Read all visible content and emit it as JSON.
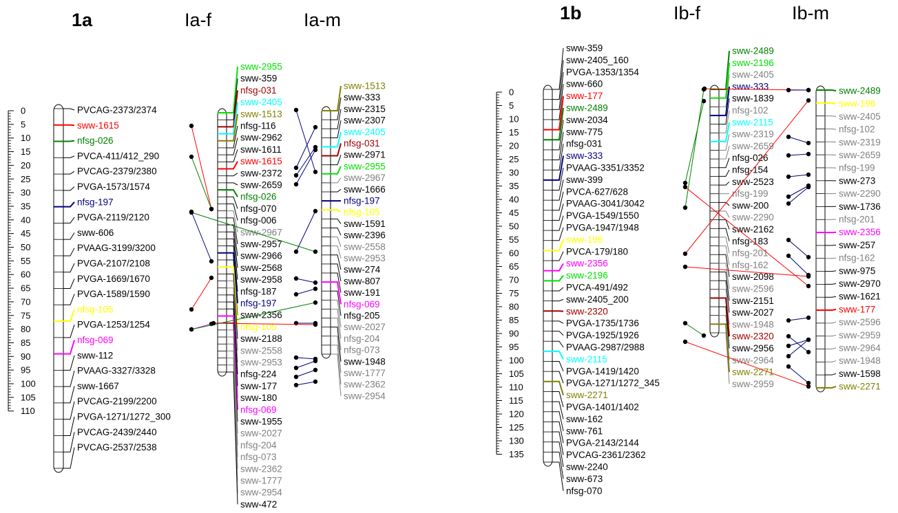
{
  "panels": [
    {
      "label": "1a",
      "columns": [
        {
          "title": "",
          "markers": [
            {
              "name": "PVCAG-2373/2374",
              "color": "#000000"
            },
            {
              "name": "sww-1615",
              "color": "#ff0000"
            },
            {
              "name": "nfsg-026",
              "color": "#008000"
            },
            {
              "name": "PVCA-411/412_290",
              "color": "#000000"
            },
            {
              "name": "PVCAG-2379/2380",
              "color": "#000000"
            },
            {
              "name": "PVGA-1573/1574",
              "color": "#000000"
            },
            {
              "name": "nfsg-197",
              "color": "#000080"
            },
            {
              "name": "PVGA-2119/2120",
              "color": "#000000"
            },
            {
              "name": "sww-606",
              "color": "#000000"
            },
            {
              "name": "PVAAG-3199/3200",
              "color": "#000000"
            },
            {
              "name": "PVGA-2107/2108",
              "color": "#000000"
            },
            {
              "name": "PVGA-1669/1670",
              "color": "#000000"
            },
            {
              "name": "PVGA-1589/1590",
              "color": "#000000"
            },
            {
              "name": "nfsg-105",
              "color": "#ffff00"
            },
            {
              "name": "PVGA-1253/1254",
              "color": "#000000"
            },
            {
              "name": "nfsg-069",
              "color": "#ff00ff"
            },
            {
              "name": "sww-112",
              "color": "#000000"
            },
            {
              "name": "PVAAG-3327/3328",
              "color": "#000000"
            },
            {
              "name": "sww-1667",
              "color": "#000000"
            },
            {
              "name": "PVCAG-2199/2200",
              "color": "#000000"
            },
            {
              "name": "PVGA-1271/1272_300",
              "color": "#000000"
            },
            {
              "name": "PVCAG-2439/2440",
              "color": "#000000"
            },
            {
              "name": "PVCAG-2537/2538",
              "color": "#000000"
            }
          ]
        },
        {
          "title": "Ia-f",
          "markers": [
            {
              "name": "sww-2955",
              "color": "#00e000"
            },
            {
              "name": "sww-359",
              "color": "#000000"
            },
            {
              "name": "nfsg-031",
              "color": "#a00000"
            },
            {
              "name": "sww-2405",
              "color": "#00ffff"
            },
            {
              "name": "sww-1513",
              "color": "#808000"
            },
            {
              "name": "nfsg-116",
              "color": "#000000"
            },
            {
              "name": "sww-2962",
              "color": "#000000"
            },
            {
              "name": "sww-1611",
              "color": "#000000"
            },
            {
              "name": "sww-1615",
              "color": "#ff0000"
            },
            {
              "name": "sww-2372",
              "color": "#000000"
            },
            {
              "name": "sww-2659",
              "color": "#000000"
            },
            {
              "name": "nfsg-026",
              "color": "#008000"
            },
            {
              "name": "nfsg-070",
              "color": "#000000"
            },
            {
              "name": "nfsg-006",
              "color": "#000000"
            },
            {
              "name": "sww-2967",
              "color": "#808080"
            },
            {
              "name": "sww-2957",
              "color": "#000000"
            },
            {
              "name": "sww-2966",
              "color": "#000000"
            },
            {
              "name": "sww-2568",
              "color": "#000000"
            },
            {
              "name": "sww-2958",
              "color": "#000000"
            },
            {
              "name": "nfsg-187",
              "color": "#000000"
            },
            {
              "name": "nfsg-197",
              "color": "#000080"
            },
            {
              "name": "sww-2356",
              "color": "#000000"
            },
            {
              "name": "nfsg-105",
              "color": "#ffff00"
            },
            {
              "name": "sww-2188",
              "color": "#000000"
            },
            {
              "name": "sww-2558",
              "color": "#808080"
            },
            {
              "name": "sww-2953",
              "color": "#808080"
            },
            {
              "name": "nfsg-224",
              "color": "#000000"
            },
            {
              "name": "sww-177",
              "color": "#000000"
            },
            {
              "name": "sww-180",
              "color": "#000000"
            },
            {
              "name": "nfsg-069",
              "color": "#ff00ff"
            },
            {
              "name": "sww-1955",
              "color": "#000000"
            },
            {
              "name": "sww-2027",
              "color": "#808080"
            },
            {
              "name": "nfsg-204",
              "color": "#808080"
            },
            {
              "name": "nfsg-073",
              "color": "#808080"
            },
            {
              "name": "sww-2362",
              "color": "#808080"
            },
            {
              "name": "sww-1777",
              "color": "#808080"
            },
            {
              "name": "sww-2954",
              "color": "#808080"
            },
            {
              "name": "sww-472",
              "color": "#000000"
            }
          ]
        },
        {
          "title": "Ia-m",
          "markers": [
            {
              "name": "sww-1513",
              "color": "#808000"
            },
            {
              "name": "sww-333",
              "color": "#000000"
            },
            {
              "name": "sww-2315",
              "color": "#000000"
            },
            {
              "name": "sww-2307",
              "color": "#000000"
            },
            {
              "name": "sww-2405",
              "color": "#00ffff"
            },
            {
              "name": "nfsg-031",
              "color": "#a00000"
            },
            {
              "name": "sww-2971",
              "color": "#000000"
            },
            {
              "name": "sww-2955",
              "color": "#00e000"
            },
            {
              "name": "sww-2967",
              "color": "#808080"
            },
            {
              "name": "sww-1666",
              "color": "#000000"
            },
            {
              "name": "nfsg-197",
              "color": "#000080"
            },
            {
              "name": "nfsg-105",
              "color": "#ffff00"
            },
            {
              "name": "sww-1591",
              "color": "#000000"
            },
            {
              "name": "sww-2396",
              "color": "#000000"
            },
            {
              "name": "sww-2558",
              "color": "#808080"
            },
            {
              "name": "sww-2953",
              "color": "#808080"
            },
            {
              "name": "sww-274",
              "color": "#000000"
            },
            {
              "name": "sww-807",
              "color": "#000000"
            },
            {
              "name": "sww-191",
              "color": "#000000"
            },
            {
              "name": "nfsg-069",
              "color": "#ff00ff"
            },
            {
              "name": "nfsg-205",
              "color": "#000000"
            },
            {
              "name": "sww-2027",
              "color": "#808080"
            },
            {
              "name": "nfsg-204",
              "color": "#808080"
            },
            {
              "name": "nfsg-073",
              "color": "#808080"
            },
            {
              "name": "sww-1948",
              "color": "#000000"
            },
            {
              "name": "sww-1777",
              "color": "#808080"
            },
            {
              "name": "sww-2362",
              "color": "#808080"
            },
            {
              "name": "sww-2954",
              "color": "#808080"
            }
          ]
        }
      ]
    },
    {
      "label": "1b",
      "columns": [
        {
          "title": "",
          "markers": [
            {
              "name": "sww-359",
              "color": "#000000"
            },
            {
              "name": "sww-2405_160",
              "color": "#000000"
            },
            {
              "name": "PVGA-1353/1354",
              "color": "#000000"
            },
            {
              "name": "sww-660",
              "color": "#000000"
            },
            {
              "name": "sww-177",
              "color": "#ff0000"
            },
            {
              "name": "sww-2489",
              "color": "#008000"
            },
            {
              "name": "sww-2034",
              "color": "#000000"
            },
            {
              "name": "sww-775",
              "color": "#000000"
            },
            {
              "name": "nfsg-031",
              "color": "#000000"
            },
            {
              "name": "sww-333",
              "color": "#000080"
            },
            {
              "name": "PVAAG-3351/3352",
              "color": "#000000"
            },
            {
              "name": "sww-399",
              "color": "#000000"
            },
            {
              "name": "PVCA-627/628",
              "color": "#000000"
            },
            {
              "name": "PVAAG-3041/3042",
              "color": "#000000"
            },
            {
              "name": "PVGA-1549/1550",
              "color": "#000000"
            },
            {
              "name": "PVGA-1947/1948",
              "color": "#000000"
            },
            {
              "name": "sww-196",
              "color": "#ffff00"
            },
            {
              "name": "PVCA-179/180",
              "color": "#000000"
            },
            {
              "name": "sww-2356",
              "color": "#ff00ff"
            },
            {
              "name": "sww-2196",
              "color": "#00e000"
            },
            {
              "name": "PVCA-491/492",
              "color": "#000000"
            },
            {
              "name": "sww-2405_200",
              "color": "#000000"
            },
            {
              "name": "sww-2320",
              "color": "#a00000"
            },
            {
              "name": "PVGA-1735/1736",
              "color": "#000000"
            },
            {
              "name": "PVGA-1925/1926",
              "color": "#000000"
            },
            {
              "name": "PVAAG-2987/2988",
              "color": "#000000"
            },
            {
              "name": "sww-2115",
              "color": "#00ffff"
            },
            {
              "name": "PVGA-1419/1420",
              "color": "#000000"
            },
            {
              "name": "PVGA-1271/1272_345",
              "color": "#000000"
            },
            {
              "name": "sww-2271",
              "color": "#808000"
            },
            {
              "name": "PVGA-1401/1402",
              "color": "#000000"
            },
            {
              "name": "sww-162",
              "color": "#000000"
            },
            {
              "name": "sww-761",
              "color": "#000000"
            },
            {
              "name": "PVGA-2143/2144",
              "color": "#000000"
            },
            {
              "name": "PVCAG-2361/2362",
              "color": "#000000"
            },
            {
              "name": "sww-2240",
              "color": "#000000"
            },
            {
              "name": "sww-673",
              "color": "#000000"
            },
            {
              "name": "nfsg-070",
              "color": "#000000"
            }
          ]
        },
        {
          "title": "Ib-f",
          "markers": [
            {
              "name": "sww-2489",
              "color": "#008000"
            },
            {
              "name": "sww-2196",
              "color": "#00e000"
            },
            {
              "name": "sww-2405",
              "color": "#808080"
            },
            {
              "name": "sww-333",
              "color": "#000080"
            },
            {
              "name": "sww-1839",
              "color": "#000000"
            },
            {
              "name": "nfsg-102",
              "color": "#808080"
            },
            {
              "name": "sww-2115",
              "color": "#00ffff"
            },
            {
              "name": "sww-2319",
              "color": "#808080"
            },
            {
              "name": "sww-2659",
              "color": "#808080"
            },
            {
              "name": "nfsg-026",
              "color": "#000000"
            },
            {
              "name": "nfsg-154",
              "color": "#000000"
            },
            {
              "name": "sww-2523",
              "color": "#000000"
            },
            {
              "name": "nfsg-199",
              "color": "#808080"
            },
            {
              "name": "sww-200",
              "color": "#000000"
            },
            {
              "name": "sww-2290",
              "color": "#808080"
            },
            {
              "name": "sww-2162",
              "color": "#000000"
            },
            {
              "name": "nfsg-183",
              "color": "#000000"
            },
            {
              "name": "nfsg-201",
              "color": "#808080"
            },
            {
              "name": "nfsg-162",
              "color": "#808080"
            },
            {
              "name": "sww-2098",
              "color": "#000000"
            },
            {
              "name": "sww-2596",
              "color": "#808080"
            },
            {
              "name": "sww-2151",
              "color": "#000000"
            },
            {
              "name": "sww-2027",
              "color": "#000000"
            },
            {
              "name": "sww-1948",
              "color": "#808080"
            },
            {
              "name": "sww-2320",
              "color": "#a00000"
            },
            {
              "name": "sww-2956",
              "color": "#000000"
            },
            {
              "name": "sww-2964",
              "color": "#808080"
            },
            {
              "name": "sww-2271",
              "color": "#808000"
            },
            {
              "name": "sww-2959",
              "color": "#808080"
            }
          ]
        },
        {
          "title": "Ib-m",
          "markers": [
            {
              "name": "sww-2489",
              "color": "#008000"
            },
            {
              "name": "sww-196",
              "color": "#ffff00"
            },
            {
              "name": "sww-2405",
              "color": "#808080"
            },
            {
              "name": "nfsg-102",
              "color": "#808080"
            },
            {
              "name": "sww-2319",
              "color": "#808080"
            },
            {
              "name": "sww-2659",
              "color": "#808080"
            },
            {
              "name": "nfsg-199",
              "color": "#808080"
            },
            {
              "name": "sww-273",
              "color": "#000000"
            },
            {
              "name": "sww-2290",
              "color": "#808080"
            },
            {
              "name": "sww-1736",
              "color": "#000000"
            },
            {
              "name": "nfsg-201",
              "color": "#808080"
            },
            {
              "name": "sww-2356",
              "color": "#ff00ff"
            },
            {
              "name": "sww-257",
              "color": "#000000"
            },
            {
              "name": "nfsg-162",
              "color": "#808080"
            },
            {
              "name": "sww-975",
              "color": "#000000"
            },
            {
              "name": "sww-2970",
              "color": "#000000"
            },
            {
              "name": "sww-1621",
              "color": "#000000"
            },
            {
              "name": "sww-177",
              "color": "#ff0000"
            },
            {
              "name": "sww-2596",
              "color": "#808080"
            },
            {
              "name": "sww-2959",
              "color": "#808080"
            },
            {
              "name": "sww-2964",
              "color": "#808080"
            },
            {
              "name": "sww-1948",
              "color": "#808080"
            },
            {
              "name": "sww-1598",
              "color": "#000000"
            },
            {
              "name": "sww-2271",
              "color": "#808000"
            }
          ]
        }
      ]
    }
  ],
  "scale_a": {
    "ticks": [
      "0",
      "5",
      "10",
      "15",
      "20",
      "25",
      "30",
      "35",
      "40",
      "45",
      "50",
      "55",
      "60",
      "65",
      "70",
      "75",
      "80",
      "85",
      "90",
      "95",
      "100",
      "105",
      "110"
    ]
  },
  "scale_b": {
    "ticks": [
      "0",
      "5",
      "10",
      "15",
      "20",
      "25",
      "30",
      "35",
      "40",
      "45",
      "50",
      "55",
      "60",
      "65",
      "70",
      "75",
      "80",
      "85",
      "90",
      "95",
      "100",
      "105",
      "110",
      "115",
      "120",
      "125",
      "130",
      "135"
    ]
  }
}
